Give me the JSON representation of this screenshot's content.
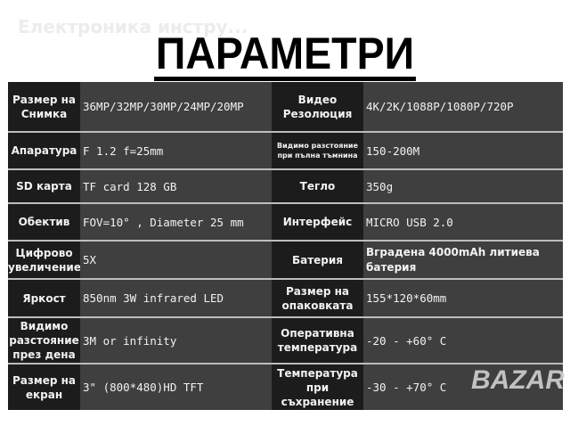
{
  "watermark": "Електроника инстру...",
  "title": "ПАРАМЕТРИ",
  "logo": "BAZAR",
  "rows": [
    {
      "l1": "Размер на Снимка",
      "v1": "36MP/32MP/30MP/24MP/20MP",
      "l2": "Видео Резолюция",
      "v2": "4K/2K/1088P/1080P/720P"
    },
    {
      "l1": "Апаратура",
      "v1": "F 1.2   f=25mm",
      "l2": "Видимо разстояние при пълна тъмнина",
      "v2": "150-200M"
    },
    {
      "l1": "SD карта",
      "v1": "TF card 128 GB",
      "l2": "Тегло",
      "v2": "350g"
    },
    {
      "l1": "Обектив",
      "v1": "FOV=10° , Diameter 25 mm",
      "l2": "Интерфейс",
      "v2": "MICRO USB 2.0"
    },
    {
      "l1": "Цифрово увеличение",
      "v1": "5X",
      "l2": "Батерия",
      "v2": "Вградена 4000mAh литиева батерия"
    },
    {
      "l1": "Яркост",
      "v1": "850nm 3W infrared LED",
      "l2": "Размер на опаковката",
      "v2": "155*120*60mm"
    },
    {
      "l1": "Видимо разстояние през дена",
      "v1": "3M or infinity",
      "l2": "Оперативна температура",
      "v2": "-20 - +60° C"
    },
    {
      "l1": "Размер на екран",
      "v1": "3\" (800*480)HD TFT",
      "l2": "Температура при съхранение",
      "v2": "-30 - +70° C"
    }
  ]
}
